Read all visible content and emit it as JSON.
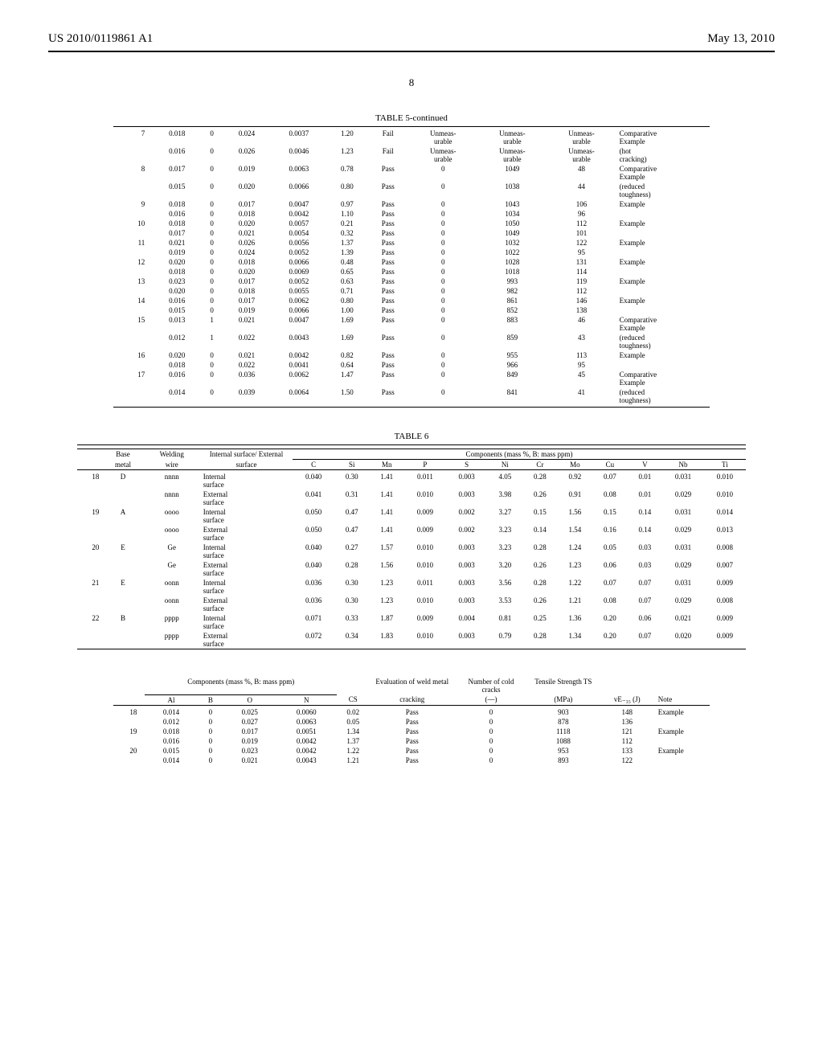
{
  "header": {
    "pub_number": "US 2010/0119861 A1",
    "pub_date": "May 13, 2010"
  },
  "page_number": "8",
  "table5": {
    "title": "TABLE 5-continued",
    "rows": [
      {
        "idx": "7",
        "r": [
          [
            "0.018",
            "0",
            "0.024",
            "0.0037",
            "1.20",
            "Fail",
            "Unmeas-urable",
            "Unmeas-urable",
            "Unmeas-urable",
            "Comparative Example"
          ],
          [
            "0.016",
            "0",
            "0.026",
            "0.0046",
            "1.23",
            "Fail",
            "Unmeas-urable",
            "Unmeas-urable",
            "Unmeas-urable",
            "(hot cracking)"
          ]
        ]
      },
      {
        "idx": "8",
        "r": [
          [
            "0.017",
            "0",
            "0.019",
            "0.0063",
            "0.78",
            "Pass",
            "0",
            "1049",
            "48",
            "Comparative Example"
          ],
          [
            "0.015",
            "0",
            "0.020",
            "0.0066",
            "0.80",
            "Pass",
            "0",
            "1038",
            "44",
            "(reduced toughness)"
          ]
        ]
      },
      {
        "idx": "9",
        "r": [
          [
            "0.018",
            "0",
            "0.017",
            "0.0047",
            "0.97",
            "Pass",
            "0",
            "1043",
            "106",
            "Example"
          ],
          [
            "0.016",
            "0",
            "0.018",
            "0.0042",
            "1.10",
            "Pass",
            "0",
            "1034",
            "96",
            ""
          ]
        ]
      },
      {
        "idx": "10",
        "r": [
          [
            "0.018",
            "0",
            "0.020",
            "0.0057",
            "0.21",
            "Pass",
            "0",
            "1050",
            "112",
            "Example"
          ],
          [
            "0.017",
            "0",
            "0.021",
            "0.0054",
            "0.32",
            "Pass",
            "0",
            "1049",
            "101",
            ""
          ]
        ]
      },
      {
        "idx": "11",
        "r": [
          [
            "0.021",
            "0",
            "0.026",
            "0.0056",
            "1.37",
            "Pass",
            "0",
            "1032",
            "122",
            "Example"
          ],
          [
            "0.019",
            "0",
            "0.024",
            "0.0052",
            "1.39",
            "Pass",
            "0",
            "1022",
            "95",
            ""
          ]
        ]
      },
      {
        "idx": "12",
        "r": [
          [
            "0.020",
            "0",
            "0.018",
            "0.0066",
            "0.48",
            "Pass",
            "0",
            "1028",
            "131",
            "Example"
          ],
          [
            "0.018",
            "0",
            "0.020",
            "0.0069",
            "0.65",
            "Pass",
            "0",
            "1018",
            "114",
            ""
          ]
        ]
      },
      {
        "idx": "13",
        "r": [
          [
            "0.023",
            "0",
            "0.017",
            "0.0052",
            "0.63",
            "Pass",
            "0",
            "993",
            "119",
            "Example"
          ],
          [
            "0.020",
            "0",
            "0.018",
            "0.0055",
            "0.71",
            "Pass",
            "0",
            "982",
            "112",
            ""
          ]
        ]
      },
      {
        "idx": "14",
        "r": [
          [
            "0.016",
            "0",
            "0.017",
            "0.0062",
            "0.80",
            "Pass",
            "0",
            "861",
            "146",
            "Example"
          ],
          [
            "0.015",
            "0",
            "0.019",
            "0.0066",
            "1.00",
            "Pass",
            "0",
            "852",
            "138",
            ""
          ]
        ]
      },
      {
        "idx": "15",
        "r": [
          [
            "0.013",
            "1",
            "0.021",
            "0.0047",
            "1.69",
            "Pass",
            "0",
            "883",
            "46",
            "Comparative Example"
          ],
          [
            "0.012",
            "1",
            "0.022",
            "0.0043",
            "1.69",
            "Pass",
            "0",
            "859",
            "43",
            "(reduced toughness)"
          ]
        ]
      },
      {
        "idx": "16",
        "r": [
          [
            "0.020",
            "0",
            "0.021",
            "0.0042",
            "0.82",
            "Pass",
            "0",
            "955",
            "113",
            "Example"
          ],
          [
            "0.018",
            "0",
            "0.022",
            "0.0041",
            "0.64",
            "Pass",
            "0",
            "966",
            "95",
            ""
          ]
        ]
      },
      {
        "idx": "17",
        "r": [
          [
            "0.016",
            "0",
            "0.036",
            "0.0062",
            "1.47",
            "Pass",
            "0",
            "849",
            "45",
            "Comparative Example"
          ],
          [
            "0.014",
            "0",
            "0.039",
            "0.0064",
            "1.50",
            "Pass",
            "0",
            "841",
            "41",
            "(reduced toughness)"
          ]
        ]
      }
    ]
  },
  "table6a": {
    "title": "TABLE 6",
    "header_top": [
      "",
      "Base",
      "Welding",
      "Internal surface/ External",
      ""
    ],
    "components_label": "Components (mass %, B: mass ppm)",
    "header_bot": [
      "",
      "metal",
      "wire",
      "surface",
      "C",
      "Si",
      "Mn",
      "P",
      "S",
      "Ni",
      "Cr",
      "Mo",
      "Cu",
      "V",
      "Nb",
      "Ti"
    ],
    "rows": [
      {
        "idx": "18",
        "bm": "D",
        "r": [
          [
            "nnnn",
            "Internal surface",
            "0.040",
            "0.30",
            "1.41",
            "0.011",
            "0.003",
            "4.05",
            "0.28",
            "0.92",
            "0.07",
            "0.01",
            "0.031",
            "0.010"
          ],
          [
            "nnnn",
            "External surface",
            "0.041",
            "0.31",
            "1.41",
            "0.010",
            "0.003",
            "3.98",
            "0.26",
            "0.91",
            "0.08",
            "0.01",
            "0.029",
            "0.010"
          ]
        ]
      },
      {
        "idx": "19",
        "bm": "A",
        "r": [
          [
            "oooo",
            "Internal surface",
            "0.050",
            "0.47",
            "1.41",
            "0.009",
            "0.002",
            "3.27",
            "0.15",
            "1.56",
            "0.15",
            "0.14",
            "0.031",
            "0.014"
          ],
          [
            "oooo",
            "External surface",
            "0.050",
            "0.47",
            "1.41",
            "0.009",
            "0.002",
            "3.23",
            "0.14",
            "1.54",
            "0.16",
            "0.14",
            "0.029",
            "0.013"
          ]
        ]
      },
      {
        "idx": "20",
        "bm": "E",
        "r": [
          [
            "Ge",
            "Internal surface",
            "0.040",
            "0.27",
            "1.57",
            "0.010",
            "0.003",
            "3.23",
            "0.28",
            "1.24",
            "0.05",
            "0.03",
            "0.031",
            "0.008"
          ],
          [
            "Ge",
            "External surface",
            "0.040",
            "0.28",
            "1.56",
            "0.010",
            "0.003",
            "3.20",
            "0.26",
            "1.23",
            "0.06",
            "0.03",
            "0.029",
            "0.007"
          ]
        ]
      },
      {
        "idx": "21",
        "bm": "E",
        "r": [
          [
            "oonn",
            "Internal surface",
            "0.036",
            "0.30",
            "1.23",
            "0.011",
            "0.003",
            "3.56",
            "0.28",
            "1.22",
            "0.07",
            "0.07",
            "0.031",
            "0.009"
          ],
          [
            "oonn",
            "External surface",
            "0.036",
            "0.30",
            "1.23",
            "0.010",
            "0.003",
            "3.53",
            "0.26",
            "1.21",
            "0.08",
            "0.07",
            "0.029",
            "0.008"
          ]
        ]
      },
      {
        "idx": "22",
        "bm": "B",
        "r": [
          [
            "pppp",
            "Internal surface",
            "0.071",
            "0.33",
            "1.87",
            "0.009",
            "0.004",
            "0.81",
            "0.25",
            "1.36",
            "0.20",
            "0.06",
            "0.021",
            "0.009"
          ],
          [
            "pppp",
            "External surface",
            "0.072",
            "0.34",
            "1.83",
            "0.010",
            "0.003",
            "0.79",
            "0.28",
            "1.34",
            "0.20",
            "0.07",
            "0.020",
            "0.009"
          ]
        ]
      }
    ]
  },
  "table6b": {
    "components_label": "Components (mass %, B: mass ppm)",
    "header_mid": [
      "",
      "",
      "",
      "",
      "",
      "",
      "Evaluation of weld metal",
      "Number of cold cracks",
      "Tensile Strength TS",
      "",
      ""
    ],
    "header_bot": [
      "",
      "Al",
      "B",
      "O",
      "N",
      "CS",
      "cracking",
      "(—)",
      "(MPa)",
      "vE₋₃₅ (J)",
      "Note"
    ],
    "rows": [
      {
        "idx": "18",
        "r": [
          [
            "0.014",
            "0",
            "0.025",
            "0.0060",
            "0.02",
            "Pass",
            "0",
            "903",
            "148",
            "Example"
          ],
          [
            "0.012",
            "0",
            "0.027",
            "0.0063",
            "0.05",
            "Pass",
            "0",
            "878",
            "136",
            ""
          ]
        ]
      },
      {
        "idx": "19",
        "r": [
          [
            "0.018",
            "0",
            "0.017",
            "0.0051",
            "1.34",
            "Pass",
            "0",
            "1118",
            "121",
            "Example"
          ],
          [
            "0.016",
            "0",
            "0.019",
            "0.0042",
            "1.37",
            "Pass",
            "0",
            "1088",
            "112",
            ""
          ]
        ]
      },
      {
        "idx": "20",
        "r": [
          [
            "0.015",
            "0",
            "0.023",
            "0.0042",
            "1.22",
            "Pass",
            "0",
            "953",
            "133",
            "Example"
          ],
          [
            "0.014",
            "0",
            "0.021",
            "0.0043",
            "1.21",
            "Pass",
            "0",
            "893",
            "122",
            ""
          ]
        ]
      }
    ]
  }
}
